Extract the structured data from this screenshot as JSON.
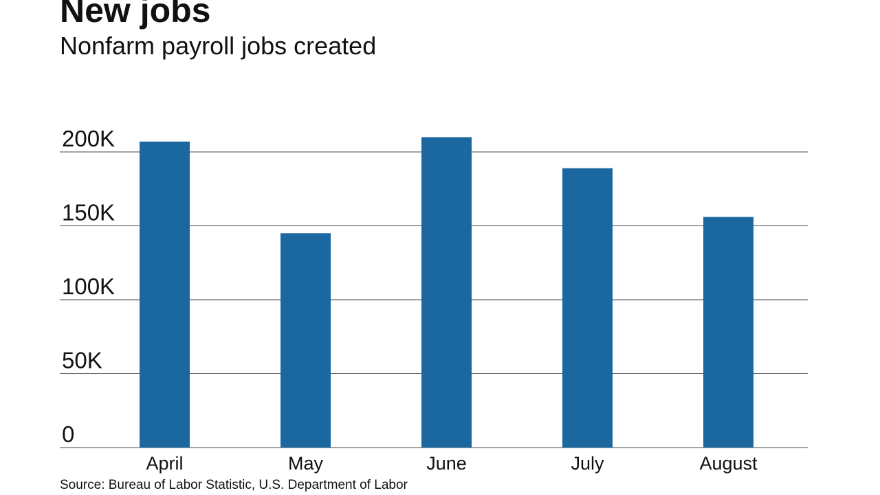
{
  "chart_data": {
    "type": "bar",
    "title": "New jobs",
    "subtitle": "Nonfarm payroll jobs created",
    "source": "Source: Bureau of Labor Statistic, U.S. Department of Labor",
    "categories": [
      "April",
      "May",
      "June",
      "July",
      "August"
    ],
    "values": [
      207000,
      145000,
      210000,
      189000,
      156000
    ],
    "color": "#1b68a0",
    "ylim": [
      0,
      215000
    ],
    "yticks": [
      0,
      {
        "value": 50000,
        "label": "50K"
      },
      {
        "value": 100000,
        "label": "100K"
      },
      {
        "value": 150000,
        "label": "150K"
      },
      {
        "value": 200000,
        "label": "200K"
      }
    ],
    "grid": true
  }
}
